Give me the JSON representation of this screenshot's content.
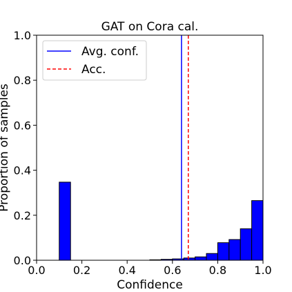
{
  "chart_data": {
    "type": "bar",
    "title": "GAT on Cora cal.",
    "xlabel": "Confidence",
    "ylabel": "Proportion of samples",
    "xlim": [
      0.0,
      1.0
    ],
    "ylim": [
      0.0,
      1.0
    ],
    "xticks": [
      "0.0",
      "0.2",
      "0.4",
      "0.6",
      "0.8",
      "1.0"
    ],
    "yticks": [
      "0.0",
      "0.2",
      "0.4",
      "0.6",
      "0.8",
      "1.0"
    ],
    "bin_width": 0.05,
    "bin_starts": [
      0.1,
      0.15,
      0.2,
      0.25,
      0.3,
      0.35,
      0.4,
      0.45,
      0.5,
      0.55,
      0.6,
      0.65,
      0.7,
      0.75,
      0.8,
      0.85,
      0.9,
      0.95
    ],
    "values": [
      0.347,
      0.0,
      0.0,
      0.0,
      0.0,
      0.0,
      0.0,
      0.0,
      0.002,
      0.004,
      0.006,
      0.01,
      0.015,
      0.03,
      0.078,
      0.092,
      0.14,
      0.265
    ],
    "bar_color": "#0000ff",
    "bar_edge_color": "#000000",
    "reference_lines": [
      {
        "name": "Avg. conf.",
        "x": 0.64,
        "color": "#0000ff",
        "style": "solid"
      },
      {
        "name": "Acc.",
        "x": 0.67,
        "color": "#ff0000",
        "style": "dashed"
      }
    ],
    "legend_position": "top-left",
    "grid": false
  }
}
